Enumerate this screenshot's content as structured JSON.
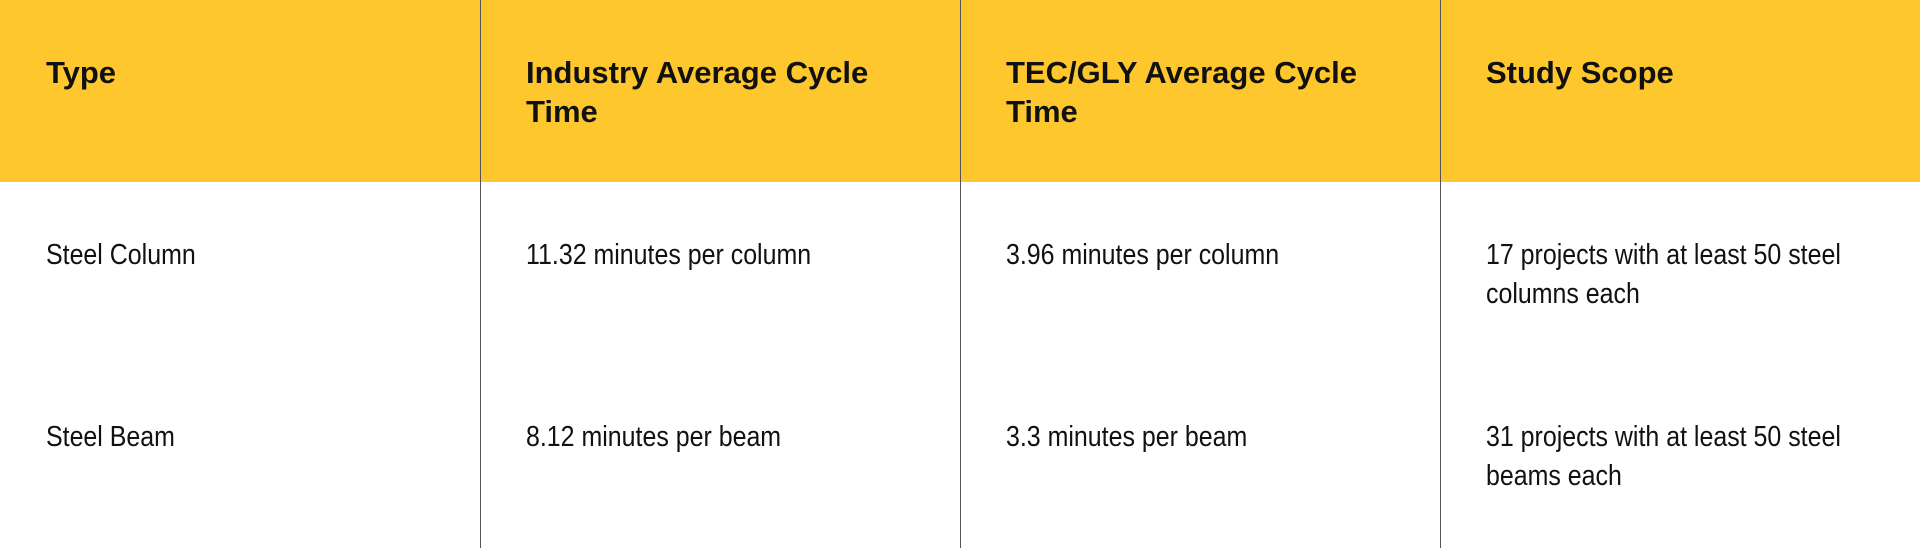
{
  "table": {
    "header": [
      "Type",
      "Industry Average Cycle Time",
      "TEC/GLY Average Cycle Time",
      "Study Scope"
    ],
    "rows": [
      [
        "Steel Column",
        "11.32 minutes per column",
        "3.96 minutes per column",
        "17 projects with at least 50 steel columns each"
      ],
      [
        "Steel Beam",
        "8.12 minutes per beam",
        "3.3 minutes per beam",
        "31 projects with at least 50 steel beams each"
      ]
    ]
  }
}
